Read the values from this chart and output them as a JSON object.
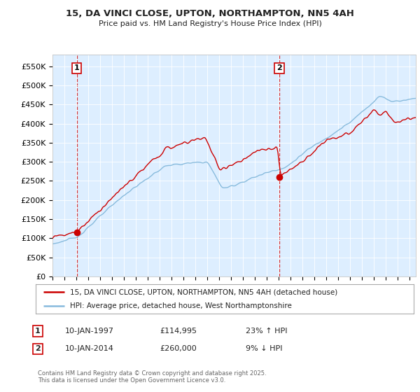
{
  "title": "15, DA VINCI CLOSE, UPTON, NORTHAMPTON, NN5 4AH",
  "subtitle": "Price paid vs. HM Land Registry's House Price Index (HPI)",
  "legend_line1": "15, DA VINCI CLOSE, UPTON, NORTHAMPTON, NN5 4AH (detached house)",
  "legend_line2": "HPI: Average price, detached house, West Northamptonshire",
  "annotation1_date": "10-JAN-1997",
  "annotation1_price": "£114,995",
  "annotation1_hpi": "23% ↑ HPI",
  "annotation2_date": "10-JAN-2014",
  "annotation2_price": "£260,000",
  "annotation2_hpi": "9% ↓ HPI",
  "footer": "Contains HM Land Registry data © Crown copyright and database right 2025.\nThis data is licensed under the Open Government Licence v3.0.",
  "red_color": "#cc0000",
  "blue_color": "#88bbdd",
  "background_color": "#ddeeff",
  "ylim": [
    0,
    580000
  ],
  "yticks": [
    0,
    50000,
    100000,
    150000,
    200000,
    250000,
    300000,
    350000,
    400000,
    450000,
    500000,
    550000
  ],
  "ytick_labels": [
    "£0",
    "£50K",
    "£100K",
    "£150K",
    "£200K",
    "£250K",
    "£300K",
    "£350K",
    "£400K",
    "£450K",
    "£500K",
    "£550K"
  ],
  "vline1_x": 1997.04,
  "vline2_x": 2014.04,
  "marker1_x": 1997.04,
  "marker1_y": 114995,
  "marker2_x": 2014.04,
  "marker2_y": 260000,
  "xlim": [
    1995.0,
    2025.5
  ]
}
